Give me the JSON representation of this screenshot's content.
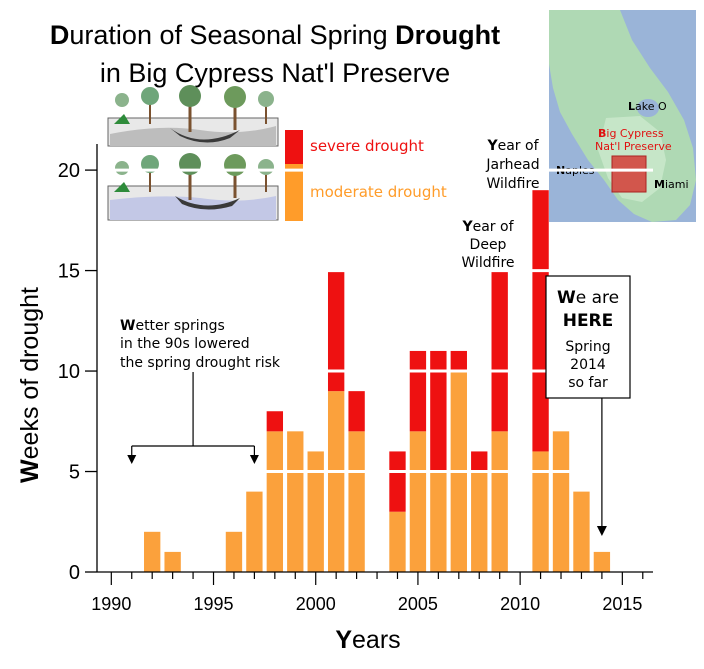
{
  "chart_data": {
    "type": "bar",
    "stacked": true,
    "title": {
      "line1": {
        "d": "D",
        "rest1": "uration of Seasonal Spring ",
        "bold": "Drought"
      },
      "line2": "in Big Cypress Nat'l Preserve"
    },
    "xlabel": {
      "first": "Y",
      "rest": "ears"
    },
    "ylabel": {
      "first": "W",
      "rest": "eeks of drought"
    },
    "xlim": [
      1989.3,
      2016.5
    ],
    "ylim": [
      0,
      21
    ],
    "xticks": [
      1990,
      1995,
      2000,
      2005,
      2010,
      2015
    ],
    "yticks": [
      0,
      5,
      10,
      15,
      20
    ],
    "colors": {
      "moderate": "#FBA13C",
      "severe": "#EE1111",
      "axis": "#000000"
    },
    "legend": {
      "position": "top-left",
      "severe_label": "severe drought",
      "moderate_label": "moderate drought",
      "severe_color": "#EE1111",
      "moderate_color": "#FF9C2A"
    },
    "series": [
      {
        "name": "moderate drought",
        "color": "#FBA13C",
        "points": [
          {
            "x": 1992,
            "y": 2
          },
          {
            "x": 1993,
            "y": 1
          },
          {
            "x": 1996,
            "y": 2
          },
          {
            "x": 1997,
            "y": 4
          },
          {
            "x": 1998,
            "y": 7
          },
          {
            "x": 1999,
            "y": 7
          },
          {
            "x": 2000,
            "y": 6
          },
          {
            "x": 2001,
            "y": 9
          },
          {
            "x": 2002,
            "y": 7
          },
          {
            "x": 2004,
            "y": 3
          },
          {
            "x": 2005,
            "y": 7
          },
          {
            "x": 2006,
            "y": 5
          },
          {
            "x": 2007,
            "y": 10
          },
          {
            "x": 2008,
            "y": 5
          },
          {
            "x": 2009,
            "y": 7
          },
          {
            "x": 2011,
            "y": 6
          },
          {
            "x": 2012,
            "y": 7
          },
          {
            "x": 2013,
            "y": 4
          },
          {
            "x": 2014,
            "y": 1
          }
        ]
      },
      {
        "name": "severe drought",
        "color": "#EE1111",
        "points": [
          {
            "x": 1998,
            "y": 1
          },
          {
            "x": 2001,
            "y": 6
          },
          {
            "x": 2002,
            "y": 2
          },
          {
            "x": 2004,
            "y": 3
          },
          {
            "x": 2005,
            "y": 4
          },
          {
            "x": 2006,
            "y": 6
          },
          {
            "x": 2007,
            "y": 1
          },
          {
            "x": 2008,
            "y": 1
          },
          {
            "x": 2009,
            "y": 8
          },
          {
            "x": 2011,
            "y": 13
          }
        ]
      }
    ],
    "annotations": {
      "wetter": {
        "first": "W",
        "line1rest": "etter springs",
        "line2": "in the 90s lowered",
        "line3": "the spring drought risk",
        "arrow_x": [
          1991,
          1997
        ]
      },
      "deep": {
        "first": "Y",
        "line1rest": "ear of",
        "line2": "Deep",
        "line3": "Wildfire",
        "x": 2009
      },
      "jarhead": {
        "first": "Y",
        "line1rest": "ear of",
        "line2": "Jarhead",
        "line3": "Wildfire",
        "x": 2011
      },
      "here": {
        "first": "W",
        "line1rest": "e are",
        "line2": "HERE",
        "line3": "Spring",
        "line4": "2014",
        "line5": "so far",
        "arrow_x": 2014
      }
    },
    "map_labels": {
      "lake": {
        "first": "L",
        "rest": "ake O"
      },
      "bigcypress1": {
        "first": "B",
        "rest": "ig Cypress"
      },
      "bigcypress2": "Nat'l Preserve",
      "naples": {
        "first": "N",
        "rest": "aples"
      },
      "miami": {
        "first": "M",
        "rest": "iami"
      }
    }
  }
}
